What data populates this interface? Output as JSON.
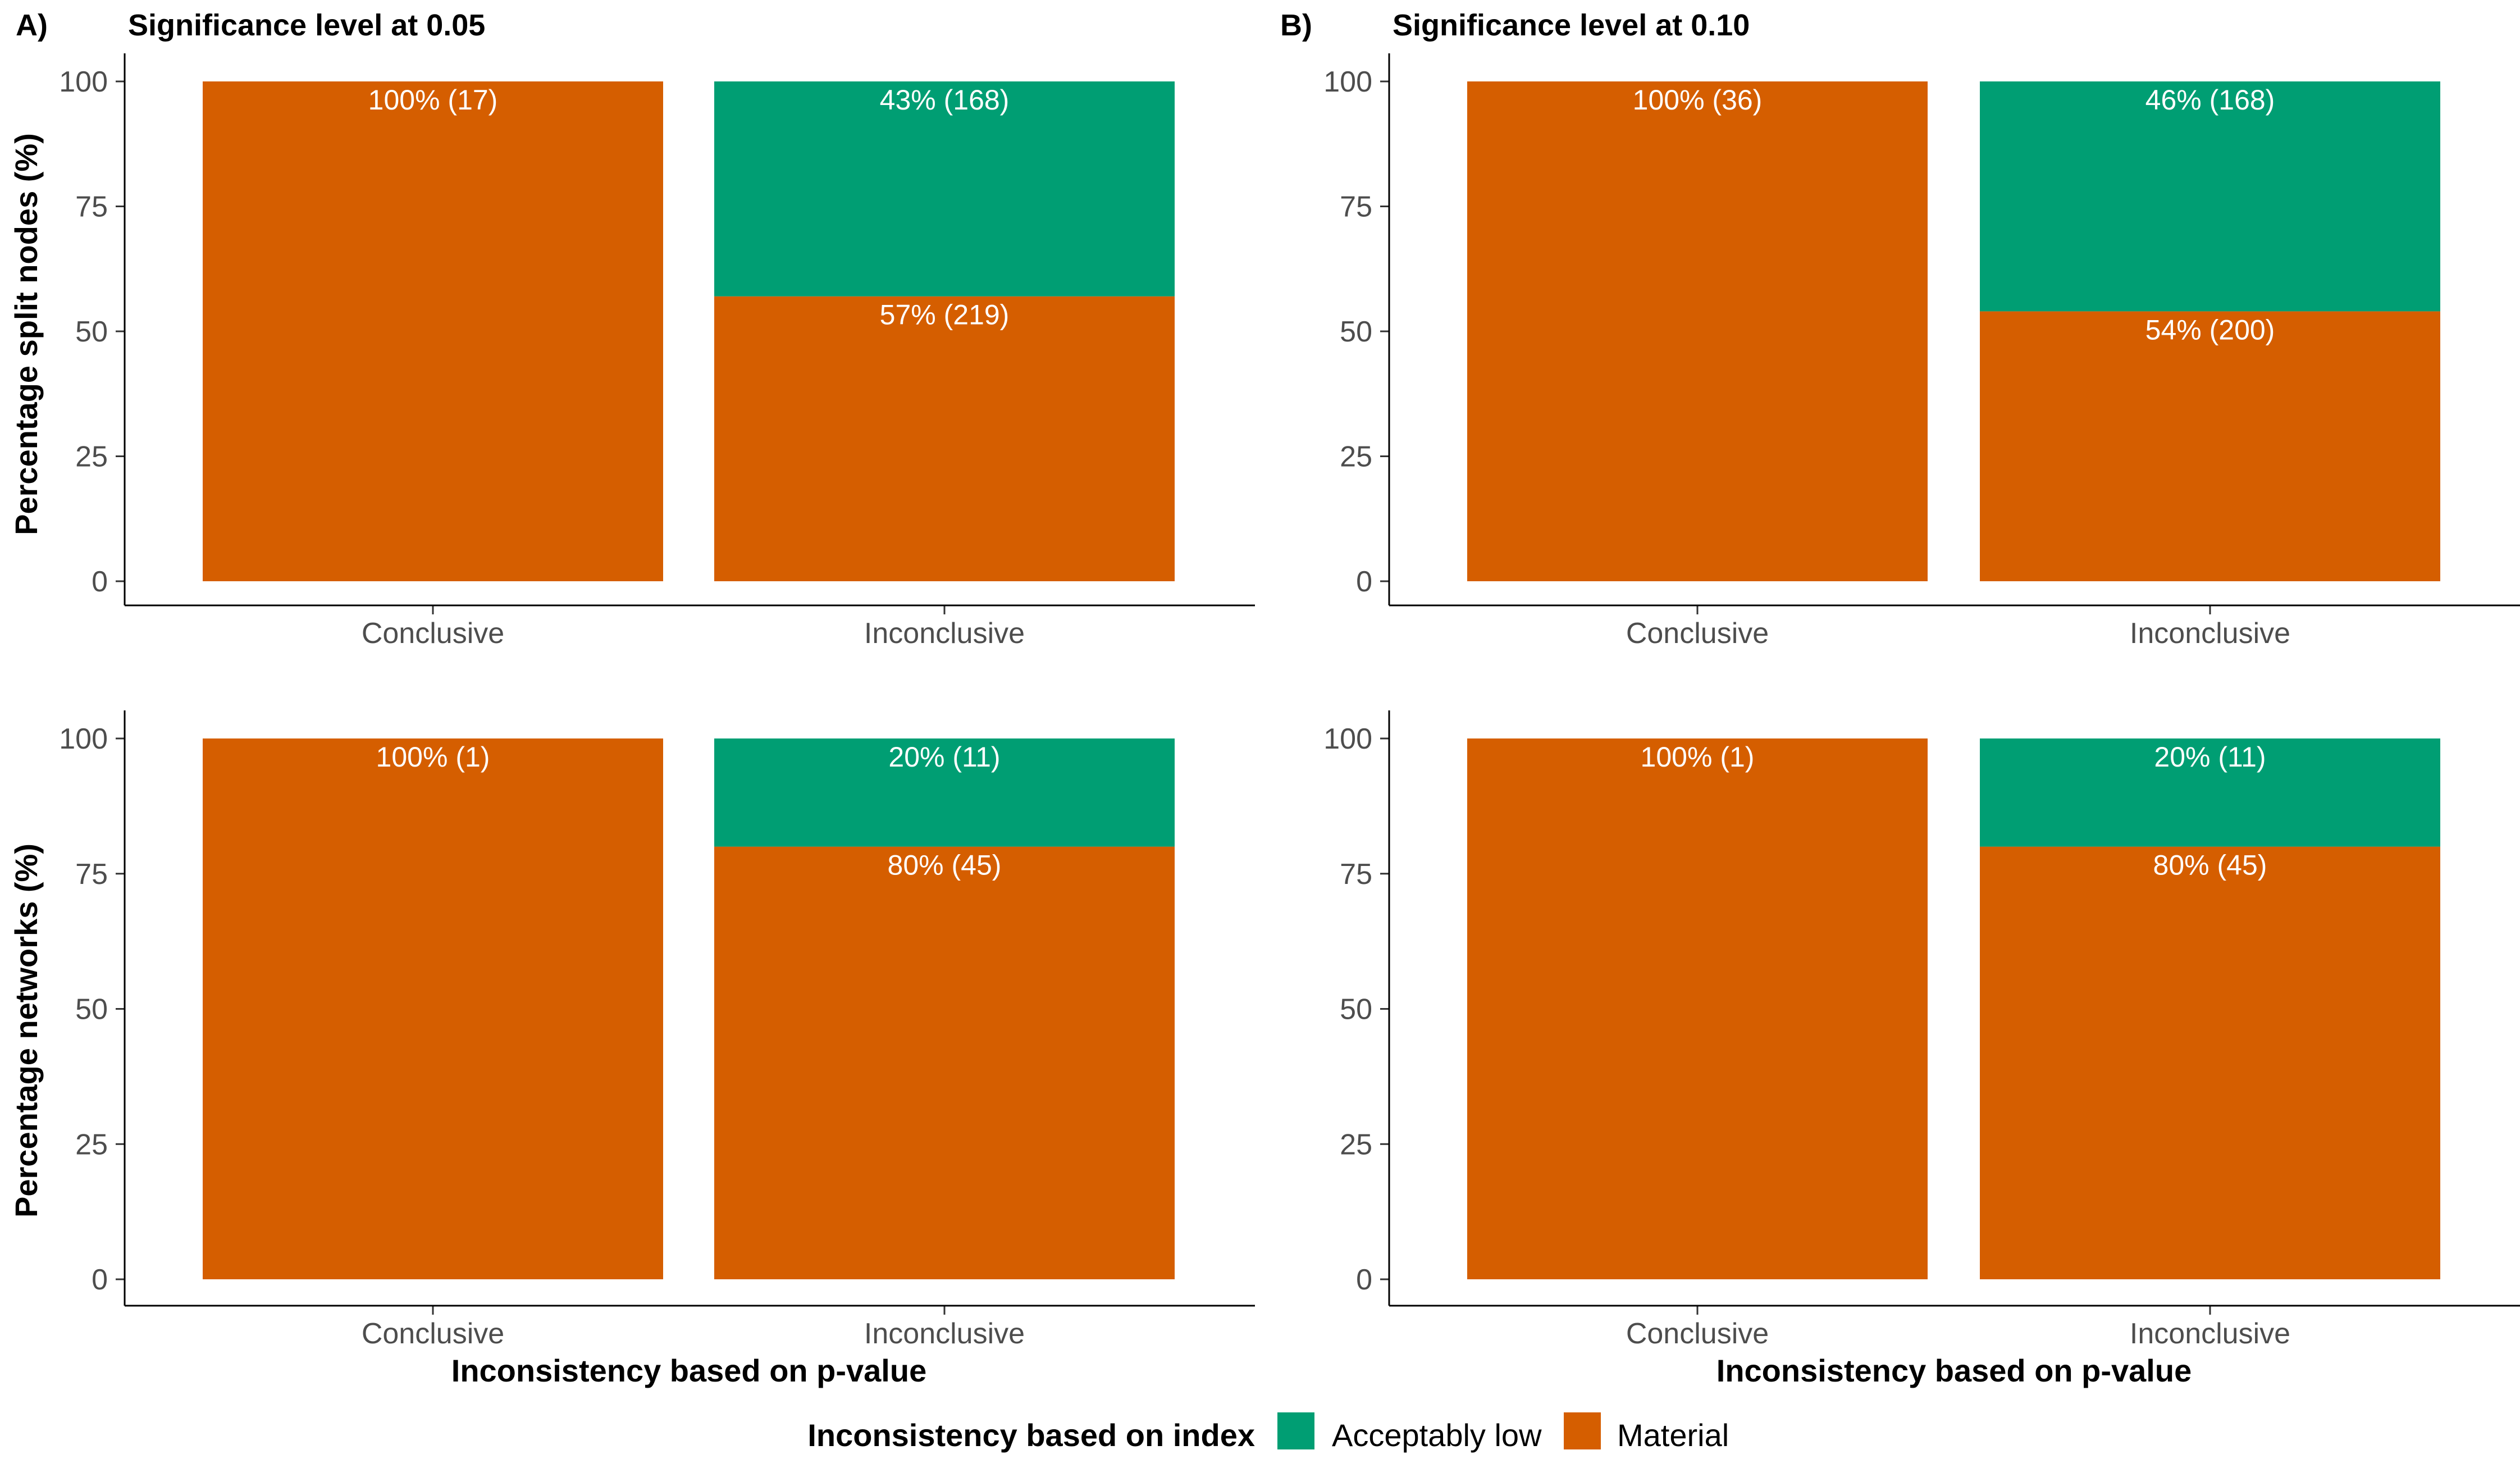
{
  "x_axis_title": "Inconsistency based on p-value",
  "legend": {
    "title": "Inconsistency based on index",
    "items": [
      {
        "label": "Acceptably low",
        "color": "#009E73"
      },
      {
        "label": "Material",
        "color": "#D55E00"
      }
    ]
  },
  "columns": [
    {
      "tag": "A)",
      "title": "Significance level at 0.05"
    },
    {
      "tag": "B)",
      "title": "Significance level at 0.10"
    }
  ],
  "rows": [
    {
      "ylabel": "Percentage split nodes (%)"
    },
    {
      "ylabel": "Percentage networks (%)"
    }
  ],
  "chart_data": [
    {
      "type": "bar",
      "stacked": true,
      "categories": [
        "Conclusive",
        "Inconclusive"
      ],
      "ylim": [
        0,
        100
      ],
      "yticks": [
        "0",
        "25",
        "50",
        "75",
        "100"
      ],
      "series": [
        {
          "name": "Material",
          "color": "#D55E00",
          "values": [
            100,
            57
          ],
          "labels": [
            "100% (17)",
            "57% (219)"
          ]
        },
        {
          "name": "Acceptably low",
          "color": "#009E73",
          "values": [
            0,
            43
          ],
          "labels": [
            "",
            "43% (168)"
          ]
        }
      ]
    },
    {
      "type": "bar",
      "stacked": true,
      "categories": [
        "Conclusive",
        "Inconclusive"
      ],
      "ylim": [
        0,
        100
      ],
      "yticks": [
        "0",
        "25",
        "50",
        "75",
        "100"
      ],
      "series": [
        {
          "name": "Material",
          "color": "#D55E00",
          "values": [
            100,
            54
          ],
          "labels": [
            "100% (36)",
            "54% (200)"
          ]
        },
        {
          "name": "Acceptably low",
          "color": "#009E73",
          "values": [
            0,
            46
          ],
          "labels": [
            "",
            "46% (168)"
          ]
        }
      ]
    },
    {
      "type": "bar",
      "stacked": true,
      "categories": [
        "Conclusive",
        "Inconclusive"
      ],
      "ylim": [
        0,
        100
      ],
      "yticks": [
        "0",
        "25",
        "50",
        "75",
        "100"
      ],
      "series": [
        {
          "name": "Material",
          "color": "#D55E00",
          "values": [
            100,
            80
          ],
          "labels": [
            "100% (1)",
            "80% (45)"
          ]
        },
        {
          "name": "Acceptably low",
          "color": "#009E73",
          "values": [
            0,
            20
          ],
          "labels": [
            "",
            "20% (11)"
          ]
        }
      ]
    },
    {
      "type": "bar",
      "stacked": true,
      "categories": [
        "Conclusive",
        "Inconclusive"
      ],
      "ylim": [
        0,
        100
      ],
      "yticks": [
        "0",
        "25",
        "50",
        "75",
        "100"
      ],
      "series": [
        {
          "name": "Material",
          "color": "#D55E00",
          "values": [
            100,
            80
          ],
          "labels": [
            "100% (1)",
            "80% (45)"
          ]
        },
        {
          "name": "Acceptably low",
          "color": "#009E73",
          "values": [
            0,
            20
          ],
          "labels": [
            "",
            "20% (11)"
          ]
        }
      ]
    }
  ]
}
